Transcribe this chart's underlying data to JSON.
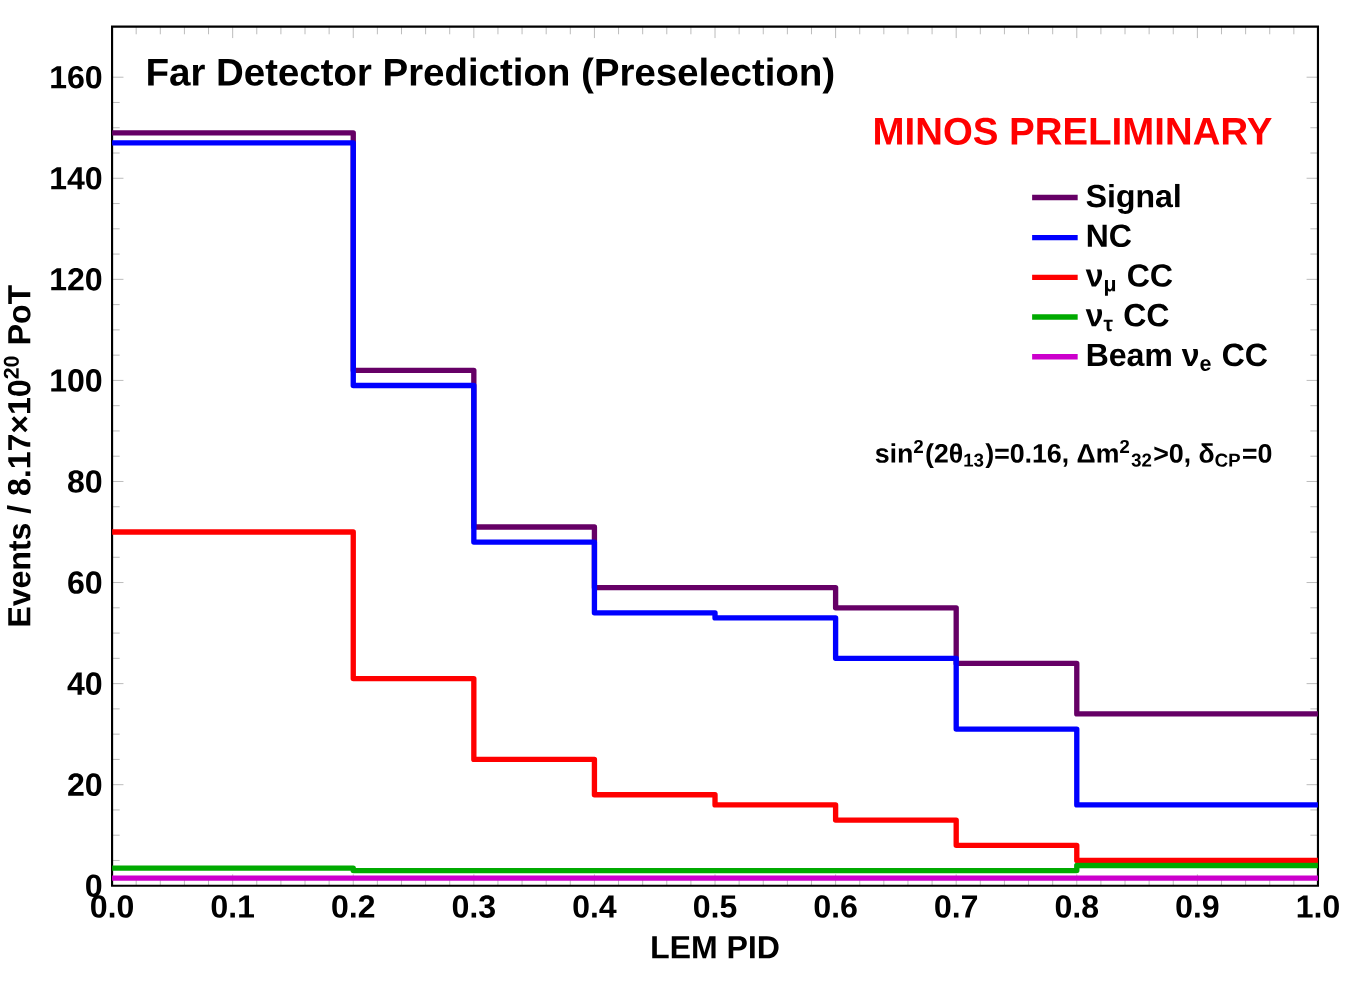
{
  "chart_data": {
    "type": "step",
    "title": "Far Detector Prediction (Preselection)",
    "xlabel": "LEM PID",
    "ylabel": "Events / 8.17×10$^{20}$ PoT",
    "annotations": [
      "MINOS PRELIMINARY",
      "sin$^{2}$(2θ$_{13}$)=0.16, Δm$^{2}$$_{32}$>0, δ$_{CP}$=0"
    ],
    "x": [
      0.0,
      0.2,
      0.3,
      0.4,
      0.5,
      0.6,
      0.7,
      0.8,
      1.0
    ],
    "series": [
      {
        "name": "Signal",
        "color": "#660066",
        "values": [
          149,
          102,
          71,
          59,
          59,
          55,
          44,
          34,
          34
        ]
      },
      {
        "name": "NC",
        "color": "#0000ff",
        "values": [
          147,
          99,
          68,
          54,
          53,
          45,
          31,
          16,
          16
        ]
      },
      {
        "name": "ν$_{μ}$ CC",
        "color": "#ff0000",
        "values": [
          70,
          41,
          25,
          18,
          16,
          13,
          8,
          5,
          5
        ]
      },
      {
        "name": "ν$_{τ}$ CC",
        "color": "#00aa00",
        "values": [
          3.5,
          3,
          3,
          3,
          3,
          3,
          3,
          4,
          4
        ]
      },
      {
        "name": "Beam ν$_{e}$ CC",
        "color": "#cc00cc",
        "values": [
          1.5,
          1.5,
          1.5,
          1.5,
          1.5,
          1.5,
          1.5,
          1.5,
          1.5
        ]
      }
    ],
    "xlim": [
      0,
      1
    ],
    "ylim": [
      0,
      170
    ],
    "xticks": [
      {
        "value": 0,
        "label": "0.0"
      },
      {
        "value": 0.1,
        "label": "0.1"
      },
      {
        "value": 0.2,
        "label": "0.2"
      },
      {
        "value": 0.3,
        "label": "0.3"
      },
      {
        "value": 0.4,
        "label": "0.4"
      },
      {
        "value": 0.5,
        "label": "0.5"
      },
      {
        "value": 0.6,
        "label": "0.6"
      },
      {
        "value": 0.7,
        "label": "0.7"
      },
      {
        "value": 0.8,
        "label": "0.8"
      },
      {
        "value": 0.9,
        "label": "0.9"
      },
      {
        "value": 1,
        "label": "1.0"
      }
    ],
    "yticks": [
      0,
      20,
      40,
      60,
      80,
      100,
      120,
      140,
      160
    ],
    "legend": "top right",
    "grid": false
  }
}
